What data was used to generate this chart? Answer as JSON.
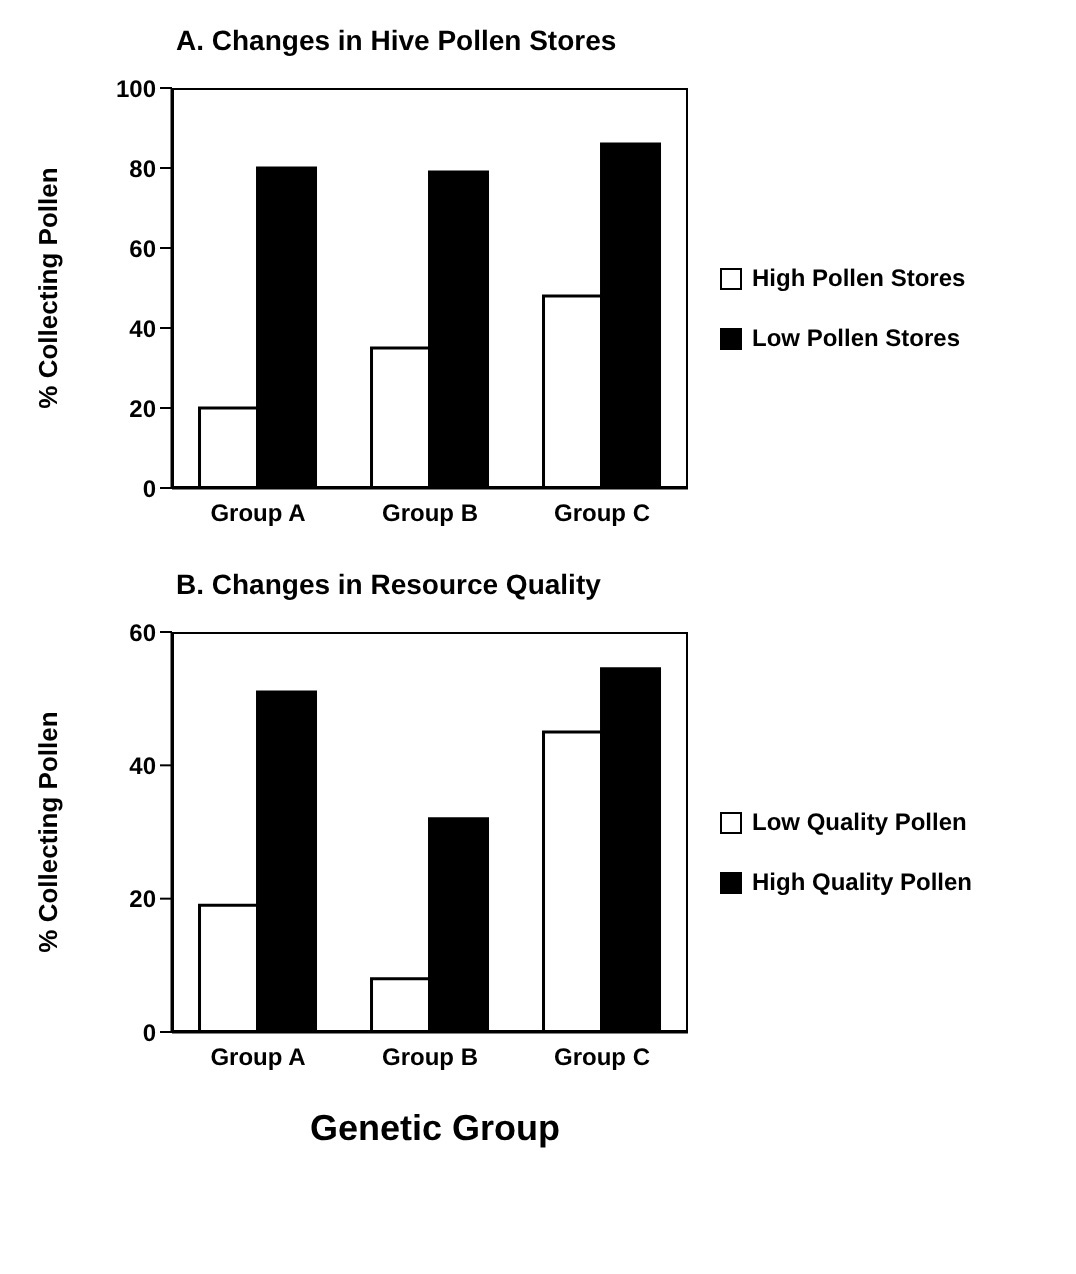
{
  "chart_data": [
    {
      "type": "bar",
      "title": "A. Changes in Hive Pollen Stores",
      "ylabel": "% Collecting Pollen",
      "categories": [
        "Group A",
        "Group B",
        "Group C"
      ],
      "series": [
        {
          "name": "High Pollen Stores",
          "color": "#ffffff",
          "values": [
            20,
            35,
            48
          ]
        },
        {
          "name": "Low Pollen Stores",
          "color": "#000000",
          "values": [
            80,
            79,
            86
          ]
        }
      ],
      "ylim": [
        0,
        100
      ],
      "yticks": [
        0,
        20,
        40,
        60,
        80,
        100
      ],
      "legend": "right",
      "grid": false
    },
    {
      "type": "bar",
      "title": "B. Changes in Resource Quality",
      "ylabel": "% Collecting Pollen",
      "xlabel": "Genetic Group",
      "categories": [
        "Group A",
        "Group B",
        "Group C"
      ],
      "series": [
        {
          "name": "Low Quality Pollen",
          "color": "#ffffff",
          "values": [
            19,
            8,
            45
          ]
        },
        {
          "name": "High Quality Pollen",
          "color": "#000000",
          "values": [
            51,
            32,
            54.5
          ]
        }
      ],
      "ylim": [
        0,
        60
      ],
      "yticks": [
        0,
        20,
        40,
        60
      ],
      "legend": "right",
      "grid": false
    }
  ]
}
